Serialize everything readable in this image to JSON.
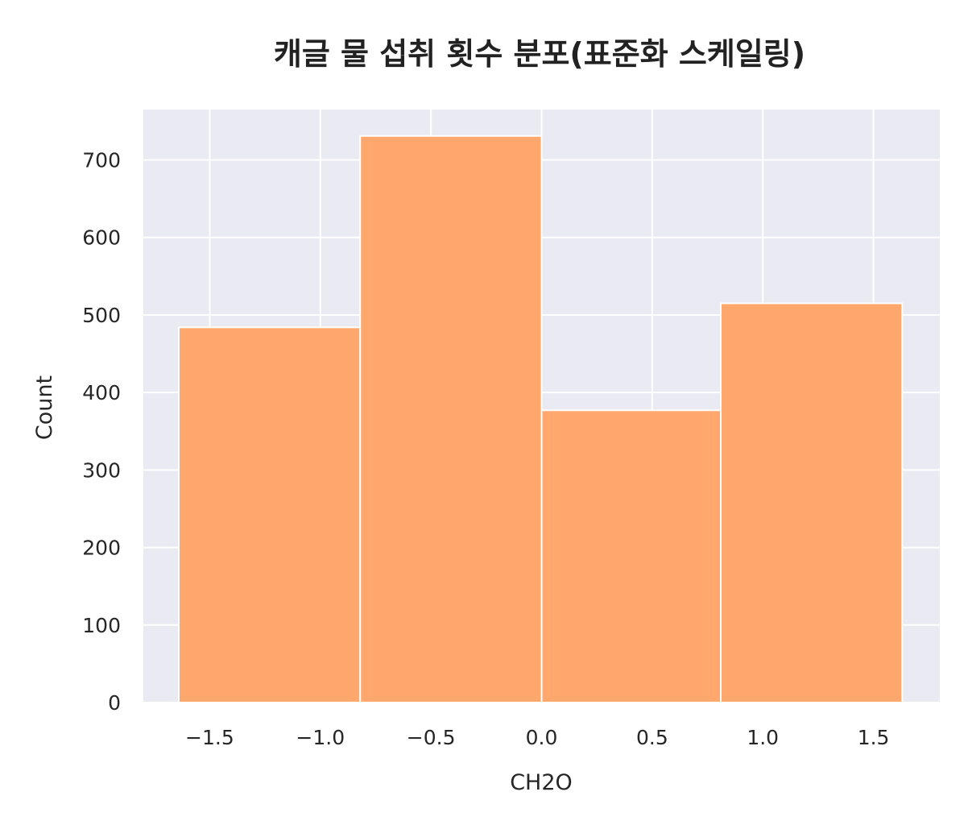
{
  "chart_data": {
    "type": "bar",
    "subtype": "histogram",
    "title": "캐글 물 섭취 횟수 분포(표준화 스케일링)",
    "xlabel": "CH2O",
    "ylabel": "Count",
    "bins": [
      {
        "x0": -1.64,
        "x1": -0.82,
        "count": 484
      },
      {
        "x0": -0.82,
        "x1": 0.0,
        "count": 731
      },
      {
        "x0": 0.0,
        "x1": 0.81,
        "count": 377
      },
      {
        "x0": 0.81,
        "x1": 1.63,
        "count": 515
      }
    ],
    "xlim": [
      -1.8,
      1.8
    ],
    "ylim": [
      0,
      765
    ],
    "xticks": [
      -1.5,
      -1.0,
      -0.5,
      0.0,
      0.5,
      1.0,
      1.5
    ],
    "xtick_labels": [
      "−1.5",
      "−1.0",
      "−0.5",
      "0.0",
      "0.5",
      "1.0",
      "1.5"
    ],
    "yticks": [
      0,
      100,
      200,
      300,
      400,
      500,
      600,
      700
    ],
    "ytick_labels": [
      "0",
      "100",
      "200",
      "300",
      "400",
      "500",
      "600",
      "700"
    ],
    "grid": true,
    "colors": {
      "bar": "#ffa76c",
      "bar_edge": "#ffffff",
      "plot_background": "#eaeaf2",
      "grid": "#ffffff",
      "text": "#262626"
    }
  }
}
